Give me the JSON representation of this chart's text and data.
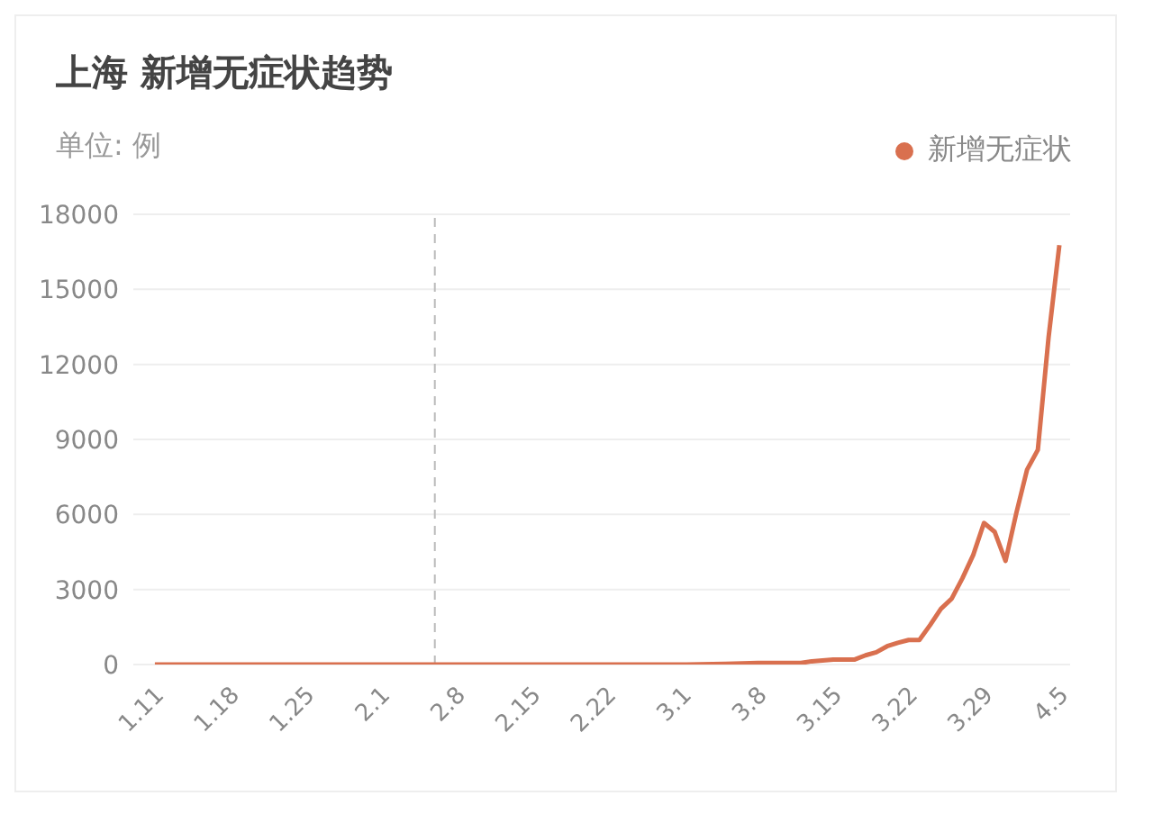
{
  "chart_data": {
    "type": "line",
    "title": "上海 新增无症状趋势",
    "subtitle": "单位: 例",
    "x": [
      "--01-11",
      "--01-18",
      "--01-25",
      "--02-01",
      "--02-08",
      "--02-15",
      "--02-22",
      "--03-01",
      "--03-05",
      "--03-08",
      "--03-10",
      "--03-12",
      "--03-13",
      "--03-15",
      "--03-17",
      "--03-18",
      "--03-19",
      "--03-20",
      "--03-21",
      "--03-22",
      "--03-23",
      "--03-24",
      "--03-25",
      "--03-26",
      "--03-27",
      "--03-28",
      "--03-29",
      "--03-30",
      "--03-31",
      "--04-01",
      "--04-02",
      "--04-03",
      "--04-04",
      "--04-05"
    ],
    "series": [
      {
        "name": "新增无症状",
        "color": "#d9704f",
        "values": [
          0,
          0,
          0,
          0,
          0,
          0,
          0,
          0,
          30,
          60,
          60,
          60,
          130,
          200,
          200,
          370,
          490,
          730,
          870,
          980,
          980,
          1580,
          2230,
          2630,
          3450,
          4380,
          5660,
          5300,
          4140,
          6050,
          7790,
          8580,
          13090,
          16770
        ]
      }
    ],
    "xlim": [
      "--01-09",
      "--04-06"
    ],
    "xticks": [
      {
        "value": "--01-11",
        "label": "1.11"
      },
      {
        "value": "--01-18",
        "label": "1.18"
      },
      {
        "value": "--01-25",
        "label": "1.25"
      },
      {
        "value": "--02-01",
        "label": "2.1"
      },
      {
        "value": "--02-08",
        "label": "2.8"
      },
      {
        "value": "--02-15",
        "label": "2.15"
      },
      {
        "value": "--02-22",
        "label": "2.22"
      },
      {
        "value": "--03-01",
        "label": "3.1"
      },
      {
        "value": "--03-08",
        "label": "3.8"
      },
      {
        "value": "--03-15",
        "label": "3.15"
      },
      {
        "value": "--03-22",
        "label": "3.22"
      },
      {
        "value": "--03-29",
        "label": "3.29"
      },
      {
        "value": "--04-05",
        "label": "4.5"
      }
    ],
    "ylim": [
      0,
      18000
    ],
    "yticks": [
      0,
      3000,
      6000,
      9000,
      12000,
      15000,
      18000
    ],
    "ref_lines": [
      {
        "axis": "x",
        "value": "--02-06",
        "color": "#bbbbbb",
        "line_style": "dashed"
      }
    ],
    "grid": "y",
    "legend": "top right",
    "marker": "none",
    "line_style": "solid"
  }
}
